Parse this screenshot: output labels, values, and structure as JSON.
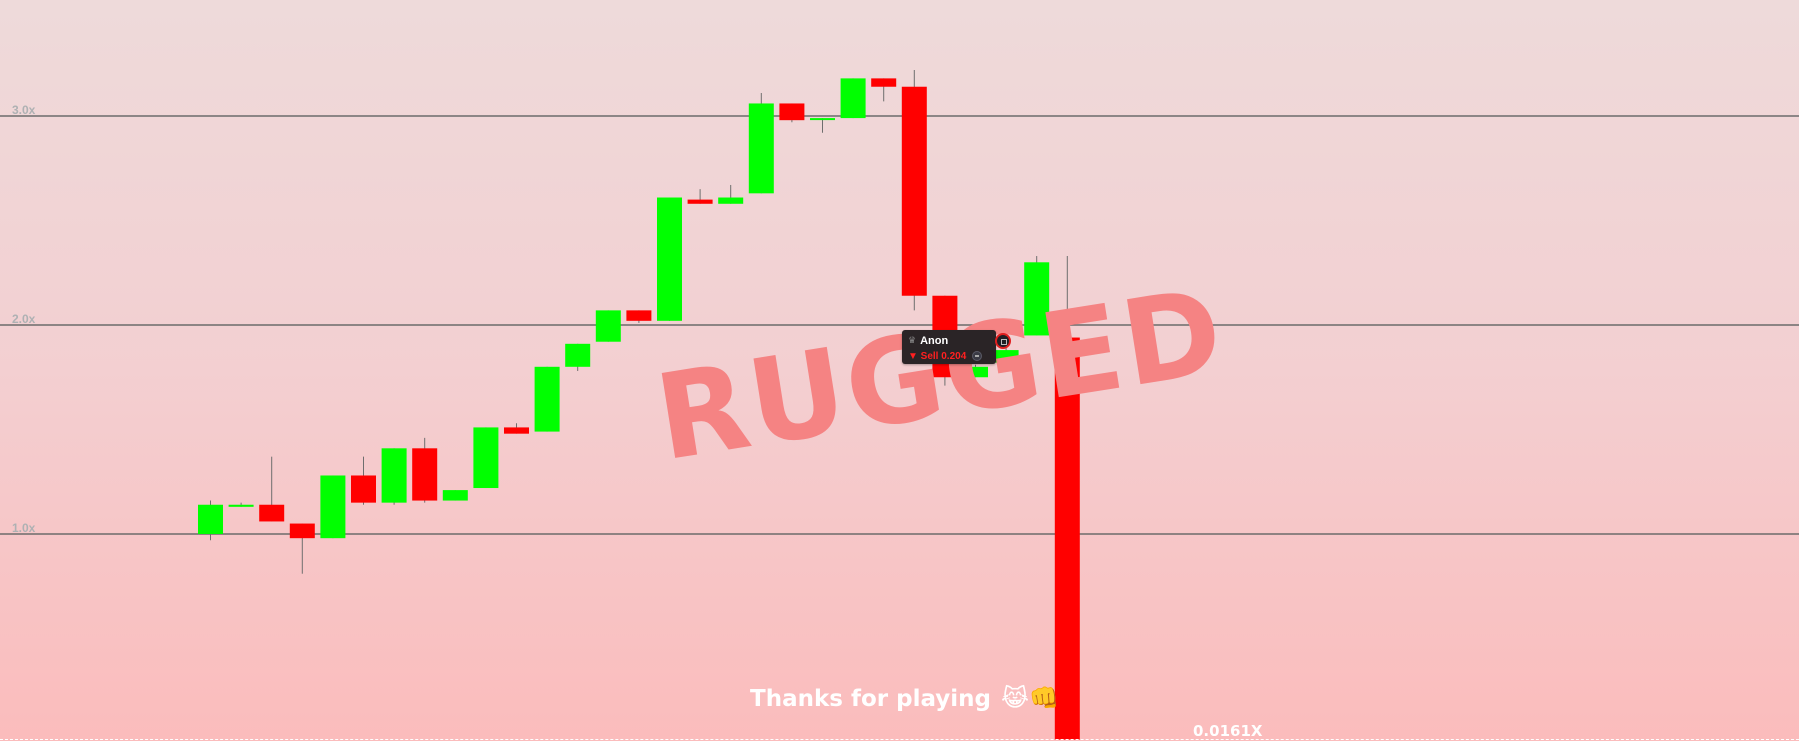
{
  "chart_data": {
    "type": "candlestick",
    "y_scale": "multiplier",
    "ylim": [
      0,
      3.5
    ],
    "gridlines": [
      {
        "value": 1.0,
        "label": "1.0x"
      },
      {
        "value": 2.0,
        "label": "2.0x"
      },
      {
        "value": 3.0,
        "label": "3.0x"
      }
    ],
    "up_color": "#00ff00",
    "down_color": "#ff0000",
    "candles": [
      {
        "o": 1.0,
        "c": 1.14,
        "h": 1.16,
        "l": 0.97
      },
      {
        "o": 1.13,
        "c": 1.14,
        "h": 1.15,
        "l": 1.13
      },
      {
        "o": 1.14,
        "c": 1.06,
        "h": 1.37,
        "l": 1.06
      },
      {
        "o": 1.05,
        "c": 0.98,
        "h": 1.05,
        "l": 0.81
      },
      {
        "o": 0.98,
        "c": 1.28,
        "h": 1.28,
        "l": 0.98
      },
      {
        "o": 1.28,
        "c": 1.15,
        "h": 1.37,
        "l": 1.14
      },
      {
        "o": 1.15,
        "c": 1.41,
        "h": 1.41,
        "l": 1.14
      },
      {
        "o": 1.41,
        "c": 1.16,
        "h": 1.46,
        "l": 1.15
      },
      {
        "o": 1.16,
        "c": 1.21,
        "h": 1.21,
        "l": 1.16
      },
      {
        "o": 1.22,
        "c": 1.51,
        "h": 1.51,
        "l": 1.22
      },
      {
        "o": 1.51,
        "c": 1.48,
        "h": 1.53,
        "l": 1.48
      },
      {
        "o": 1.49,
        "c": 1.8,
        "h": 1.8,
        "l": 1.49
      },
      {
        "o": 1.8,
        "c": 1.91,
        "h": 1.91,
        "l": 1.78
      },
      {
        "o": 1.92,
        "c": 2.07,
        "h": 2.07,
        "l": 1.92
      },
      {
        "o": 2.07,
        "c": 2.02,
        "h": 2.07,
        "l": 2.01
      },
      {
        "o": 2.02,
        "c": 2.61,
        "h": 2.61,
        "l": 2.02
      },
      {
        "o": 2.6,
        "c": 2.58,
        "h": 2.65,
        "l": 2.58
      },
      {
        "o": 2.58,
        "c": 2.61,
        "h": 2.67,
        "l": 2.58
      },
      {
        "o": 2.63,
        "c": 3.06,
        "h": 3.11,
        "l": 2.63
      },
      {
        "o": 3.06,
        "c": 2.98,
        "h": 3.06,
        "l": 2.97
      },
      {
        "o": 2.99,
        "c": 2.99,
        "h": 2.99,
        "l": 2.92
      },
      {
        "o": 2.99,
        "c": 3.18,
        "h": 3.18,
        "l": 2.99
      },
      {
        "o": 3.18,
        "c": 3.14,
        "h": 3.18,
        "l": 3.07
      },
      {
        "o": 3.14,
        "c": 2.14,
        "h": 3.22,
        "l": 2.07
      },
      {
        "o": 2.14,
        "c": 1.75,
        "h": 2.14,
        "l": 1.71
      },
      {
        "o": 1.75,
        "c": 1.8,
        "h": 1.81,
        "l": 1.75
      },
      {
        "o": 1.82,
        "c": 1.88,
        "h": 1.89,
        "l": 1.8
      },
      {
        "o": 1.95,
        "c": 2.3,
        "h": 2.33,
        "l": 1.95
      },
      {
        "o": 1.94,
        "c": 0.0161,
        "h": 2.33,
        "l": 0.0161
      }
    ]
  },
  "overlay": {
    "status_text": "RUGGED",
    "thanks_text": "Thanks for playing",
    "thanks_emoji": "😹👊",
    "final_multiplier": "0.0161X"
  },
  "trade_tooltip": {
    "player_icon": "crown-icon",
    "player_name": "Anon",
    "action_text": "▼ Sell 0.204",
    "coin_icon": "coin-icon"
  }
}
